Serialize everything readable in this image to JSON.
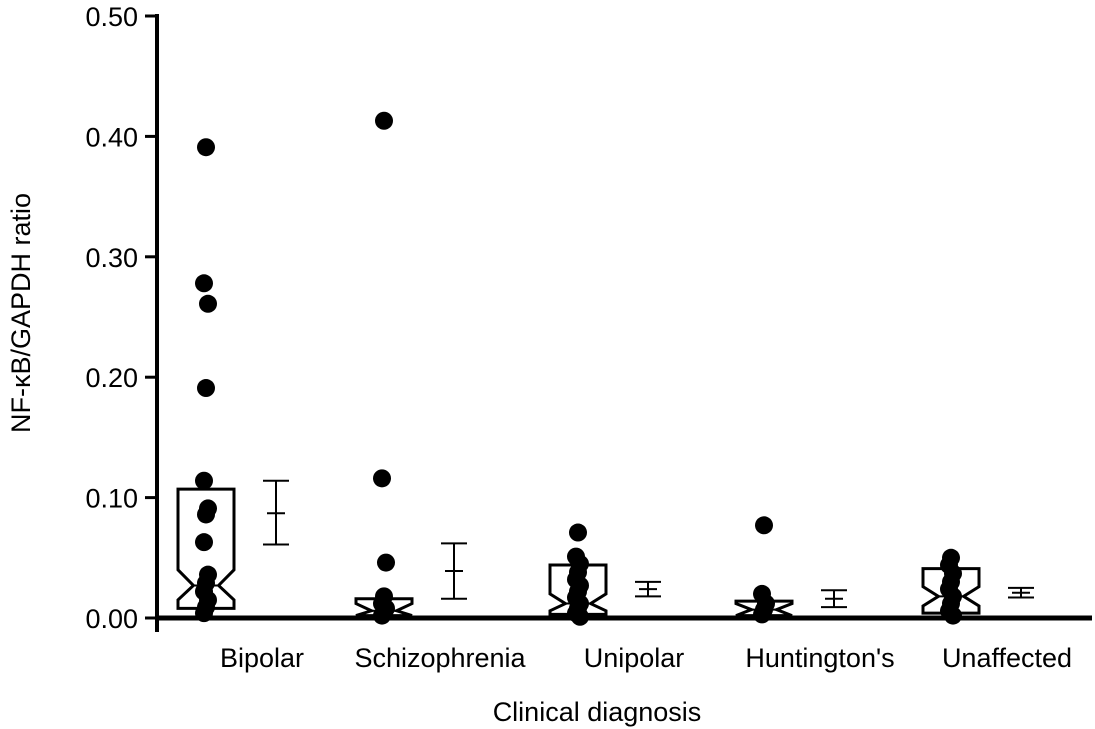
{
  "chart_data": {
    "type": "scatter",
    "title": "",
    "xlabel": "Clinical diagnosis",
    "ylabel": "NF-κB/GAPDH ratio",
    "ylim": [
      0,
      0.5
    ],
    "ytick_values": [
      0.0,
      0.1,
      0.2,
      0.3,
      0.4,
      0.5
    ],
    "yticks": [
      "0.00",
      "0.10",
      "0.20",
      "0.30",
      "0.40",
      "0.50"
    ],
    "categories": [
      "Bipolar",
      "Schizophrenia",
      "Unipolar",
      "Huntington's",
      "Unaffected"
    ],
    "grid": false,
    "legend": "none",
    "colors": {
      "ink": "#000000",
      "background": "#ffffff"
    },
    "groups": [
      {
        "name": "Bipolar",
        "points": [
          0.391,
          0.278,
          0.261,
          0.191,
          0.114,
          0.091,
          0.086,
          0.063,
          0.036,
          0.029,
          0.022,
          0.015,
          0.009,
          0.004
        ],
        "box": {
          "q1": 0.008,
          "median": 0.027,
          "q3": 0.107,
          "notch_low": 0.015,
          "notch_high": 0.04
        },
        "mean": 0.087,
        "err_low": 0.061,
        "err_high": 0.114
      },
      {
        "name": "Schizophrenia",
        "points": [
          0.413,
          0.116,
          0.046,
          0.018,
          0.012,
          0.008,
          0.005,
          0.002
        ],
        "box": {
          "q1": 0.002,
          "median": 0.006,
          "q3": 0.016,
          "notch_low": 0.002,
          "notch_high": 0.012
        },
        "mean": 0.039,
        "err_low": 0.016,
        "err_high": 0.062
      },
      {
        "name": "Unipolar",
        "points": [
          0.071,
          0.051,
          0.045,
          0.038,
          0.032,
          0.027,
          0.022,
          0.017,
          0.012,
          0.008,
          0.004,
          0.001
        ],
        "box": {
          "q1": 0.003,
          "median": 0.012,
          "q3": 0.044,
          "notch_low": 0.006,
          "notch_high": 0.02
        },
        "mean": 0.024,
        "err_low": 0.018,
        "err_high": 0.03
      },
      {
        "name": "Huntington's",
        "points": [
          0.077,
          0.02,
          0.012,
          0.007,
          0.003
        ],
        "box": {
          "q1": 0.002,
          "median": 0.007,
          "q3": 0.014,
          "notch_low": 0.002,
          "notch_high": 0.012
        },
        "mean": 0.016,
        "err_low": 0.009,
        "err_high": 0.023
      },
      {
        "name": "Unaffected",
        "points": [
          0.05,
          0.044,
          0.037,
          0.03,
          0.024,
          0.018,
          0.012,
          0.006,
          0.002
        ],
        "box": {
          "q1": 0.004,
          "median": 0.018,
          "q3": 0.041,
          "notch_low": 0.01,
          "notch_high": 0.026
        },
        "mean": 0.021,
        "err_low": 0.017,
        "err_high": 0.025
      }
    ]
  }
}
